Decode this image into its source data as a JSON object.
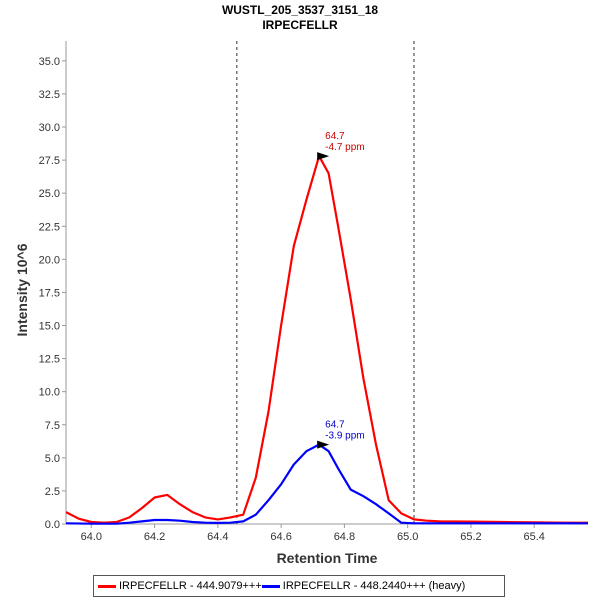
{
  "chart_data": {
    "type": "line",
    "title": "WUSTL_205_3537_3151_18",
    "subtitle": "IRPECFELLR",
    "xlabel": "Retention Time",
    "ylabel": "Intensity 10^6",
    "xlim": [
      63.92,
      65.57
    ],
    "ylim": [
      0,
      36.5
    ],
    "xticks": [
      "64.0",
      "64.2",
      "64.4",
      "64.6",
      "64.8",
      "65.0",
      "65.2",
      "65.4"
    ],
    "yticks": [
      "0.0",
      "2.5",
      "5.0",
      "7.5",
      "10.0",
      "12.5",
      "15.0",
      "17.5",
      "20.0",
      "22.5",
      "25.0",
      "27.5",
      "30.0",
      "32.5",
      "35.0"
    ],
    "grid": false,
    "legend_position": "bottom",
    "boundaries": [
      64.46,
      65.02
    ],
    "series": [
      {
        "name": "IRPECFELLR - 444.9079+++",
        "color": "#ff0000",
        "x": [
          63.92,
          63.96,
          64.0,
          64.04,
          64.08,
          64.12,
          64.16,
          64.2,
          64.24,
          64.28,
          64.32,
          64.36,
          64.4,
          64.44,
          64.48,
          64.52,
          64.56,
          64.6,
          64.64,
          64.68,
          64.72,
          64.75,
          64.78,
          64.82,
          64.86,
          64.9,
          64.94,
          64.98,
          65.02,
          65.06,
          65.1,
          65.2,
          65.3,
          65.4,
          65.5,
          65.57
        ],
        "values": [
          0.9,
          0.4,
          0.15,
          0.1,
          0.15,
          0.5,
          1.2,
          2.0,
          2.2,
          1.5,
          0.9,
          0.5,
          0.35,
          0.5,
          0.7,
          3.5,
          8.5,
          15.0,
          21.0,
          24.5,
          27.8,
          26.5,
          22.5,
          17.0,
          11.0,
          6.0,
          1.8,
          0.8,
          0.35,
          0.25,
          0.2,
          0.18,
          0.15,
          0.12,
          0.1,
          0.1
        ]
      },
      {
        "name": "IRPECFELLR - 448.2440+++ (heavy)",
        "color": "#0000ff",
        "x": [
          63.92,
          64.0,
          64.08,
          64.12,
          64.16,
          64.2,
          64.24,
          64.28,
          64.32,
          64.36,
          64.4,
          64.44,
          64.48,
          64.52,
          64.56,
          64.6,
          64.64,
          64.68,
          64.72,
          64.75,
          64.78,
          64.82,
          64.86,
          64.9,
          64.94,
          64.98,
          65.02,
          65.06,
          65.1,
          65.2,
          65.3,
          65.4,
          65.5,
          65.57
        ],
        "values": [
          0.05,
          0.02,
          0.02,
          0.1,
          0.2,
          0.3,
          0.3,
          0.25,
          0.15,
          0.1,
          0.08,
          0.1,
          0.2,
          0.7,
          1.8,
          3.0,
          4.5,
          5.5,
          6.0,
          5.5,
          4.2,
          2.6,
          2.1,
          1.5,
          0.8,
          0.1,
          0.05,
          0.05,
          0.05,
          0.05,
          0.05,
          0.05,
          0.05,
          0.05
        ]
      }
    ],
    "annotations": [
      {
        "x": 64.755,
        "y": 27.8,
        "lines": [
          "64.7",
          "-4.7 ppm"
        ],
        "color": "#cc0000"
      },
      {
        "x": 64.755,
        "y": 6.0,
        "lines": [
          "64.7",
          "-3.9 ppm"
        ],
        "color": "#0000cc"
      }
    ],
    "legend": [
      {
        "label": "IRPECFELLR - 444.9079+++",
        "color": "#ff0000"
      },
      {
        "label": "IRPECFELLR - 448.2440+++ (heavy)",
        "color": "#0000ff"
      }
    ]
  }
}
